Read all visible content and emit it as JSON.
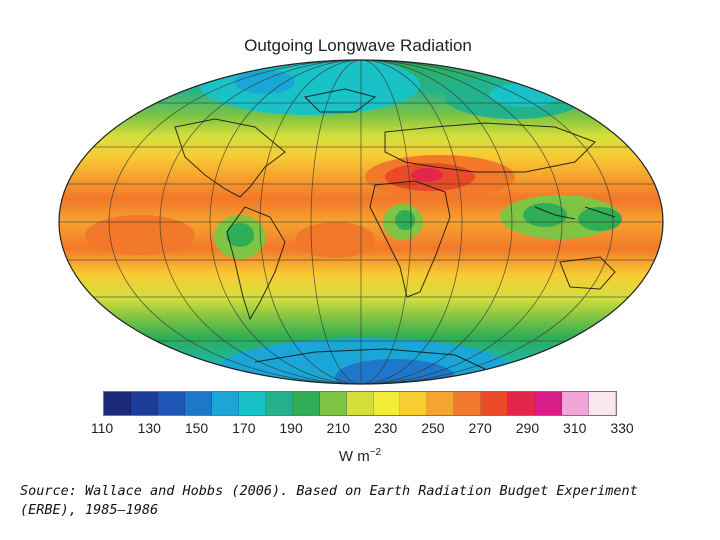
{
  "title": "Outgoing Longwave Radiation",
  "colorbar": {
    "colors": [
      "#1a2a78",
      "#1d3c9a",
      "#1f55b8",
      "#1d78cc",
      "#1aa6d6",
      "#19c2c7",
      "#23b28c",
      "#2fae55",
      "#7fc443",
      "#d4df3c",
      "#f3ec3a",
      "#f8cc33",
      "#f6a42f",
      "#f2782a",
      "#e94b28",
      "#e2274a",
      "#d91e8c",
      "#f0a7d8",
      "#fbe7ef"
    ],
    "tick_labels": [
      "110",
      "130",
      "150",
      "170",
      "190",
      "210",
      "230",
      "250",
      "270",
      "290",
      "310",
      "330"
    ],
    "units_base": "W m",
    "units_exp": "−2"
  },
  "source": {
    "line1": "Source:  Wallace and Hobbs (2006).  Based on Earth Radiation Budget Experiment",
    "line2": "(ERBE), 1985–1986"
  }
}
